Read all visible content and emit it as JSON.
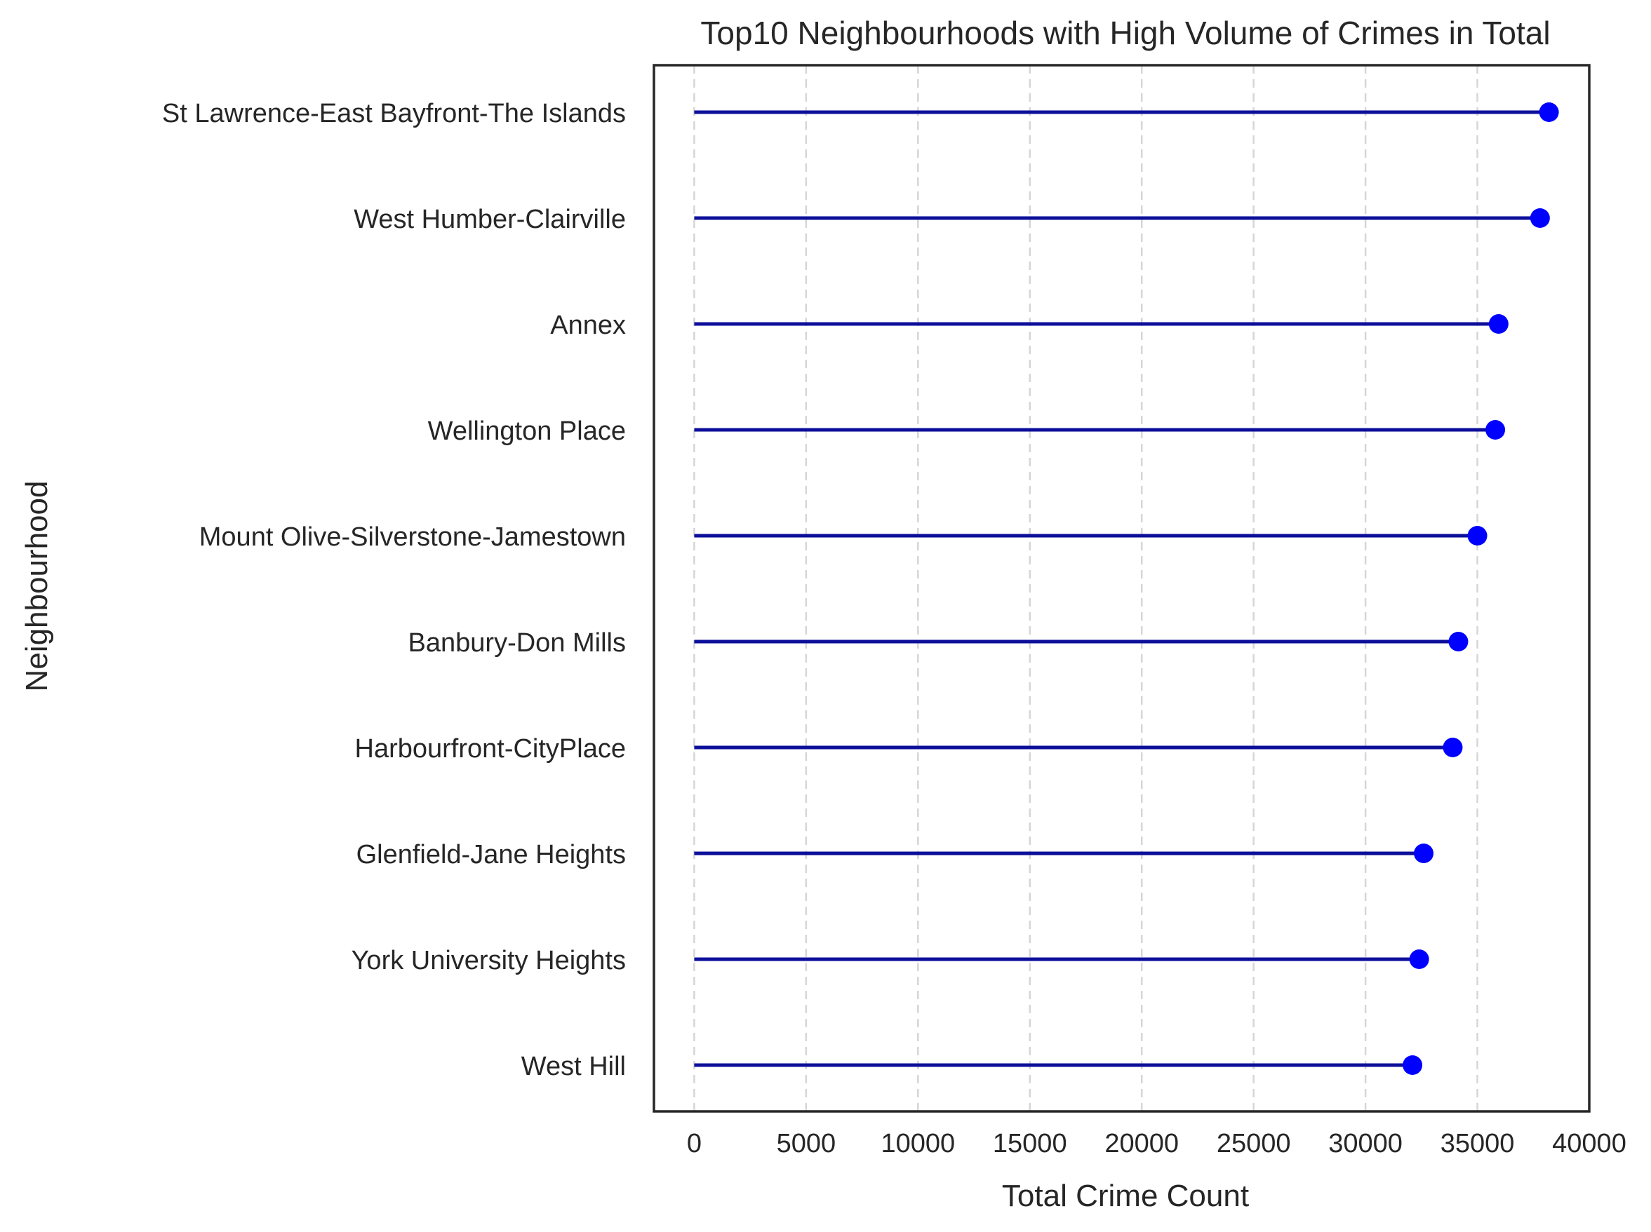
{
  "chart_data": {
    "type": "lollipop",
    "title": "Top10 Neighbourhoods with High Volume of Crimes in Total",
    "xlabel": "Total Crime Count",
    "ylabel": "Neighbourhood",
    "xlim": [
      -1800,
      40000
    ],
    "xticks": [
      0,
      5000,
      10000,
      15000,
      20000,
      25000,
      30000,
      35000,
      40000
    ],
    "grid": "x-dashed",
    "categories": [
      "St Lawrence-East Bayfront-The Islands",
      "West Humber-Clairville",
      "Annex",
      "Wellington Place",
      "Mount Olive-Silverstone-Jamestown",
      "Banbury-Don Mills",
      "Harbourfront-CityPlace",
      "Glenfield-Jane Heights",
      "York University Heights",
      "West Hill"
    ],
    "values": [
      38200,
      37800,
      35950,
      35800,
      35000,
      34150,
      33900,
      32600,
      32400,
      32100
    ],
    "line_color": "#0c0f99",
    "marker_color": "#0000ff"
  }
}
